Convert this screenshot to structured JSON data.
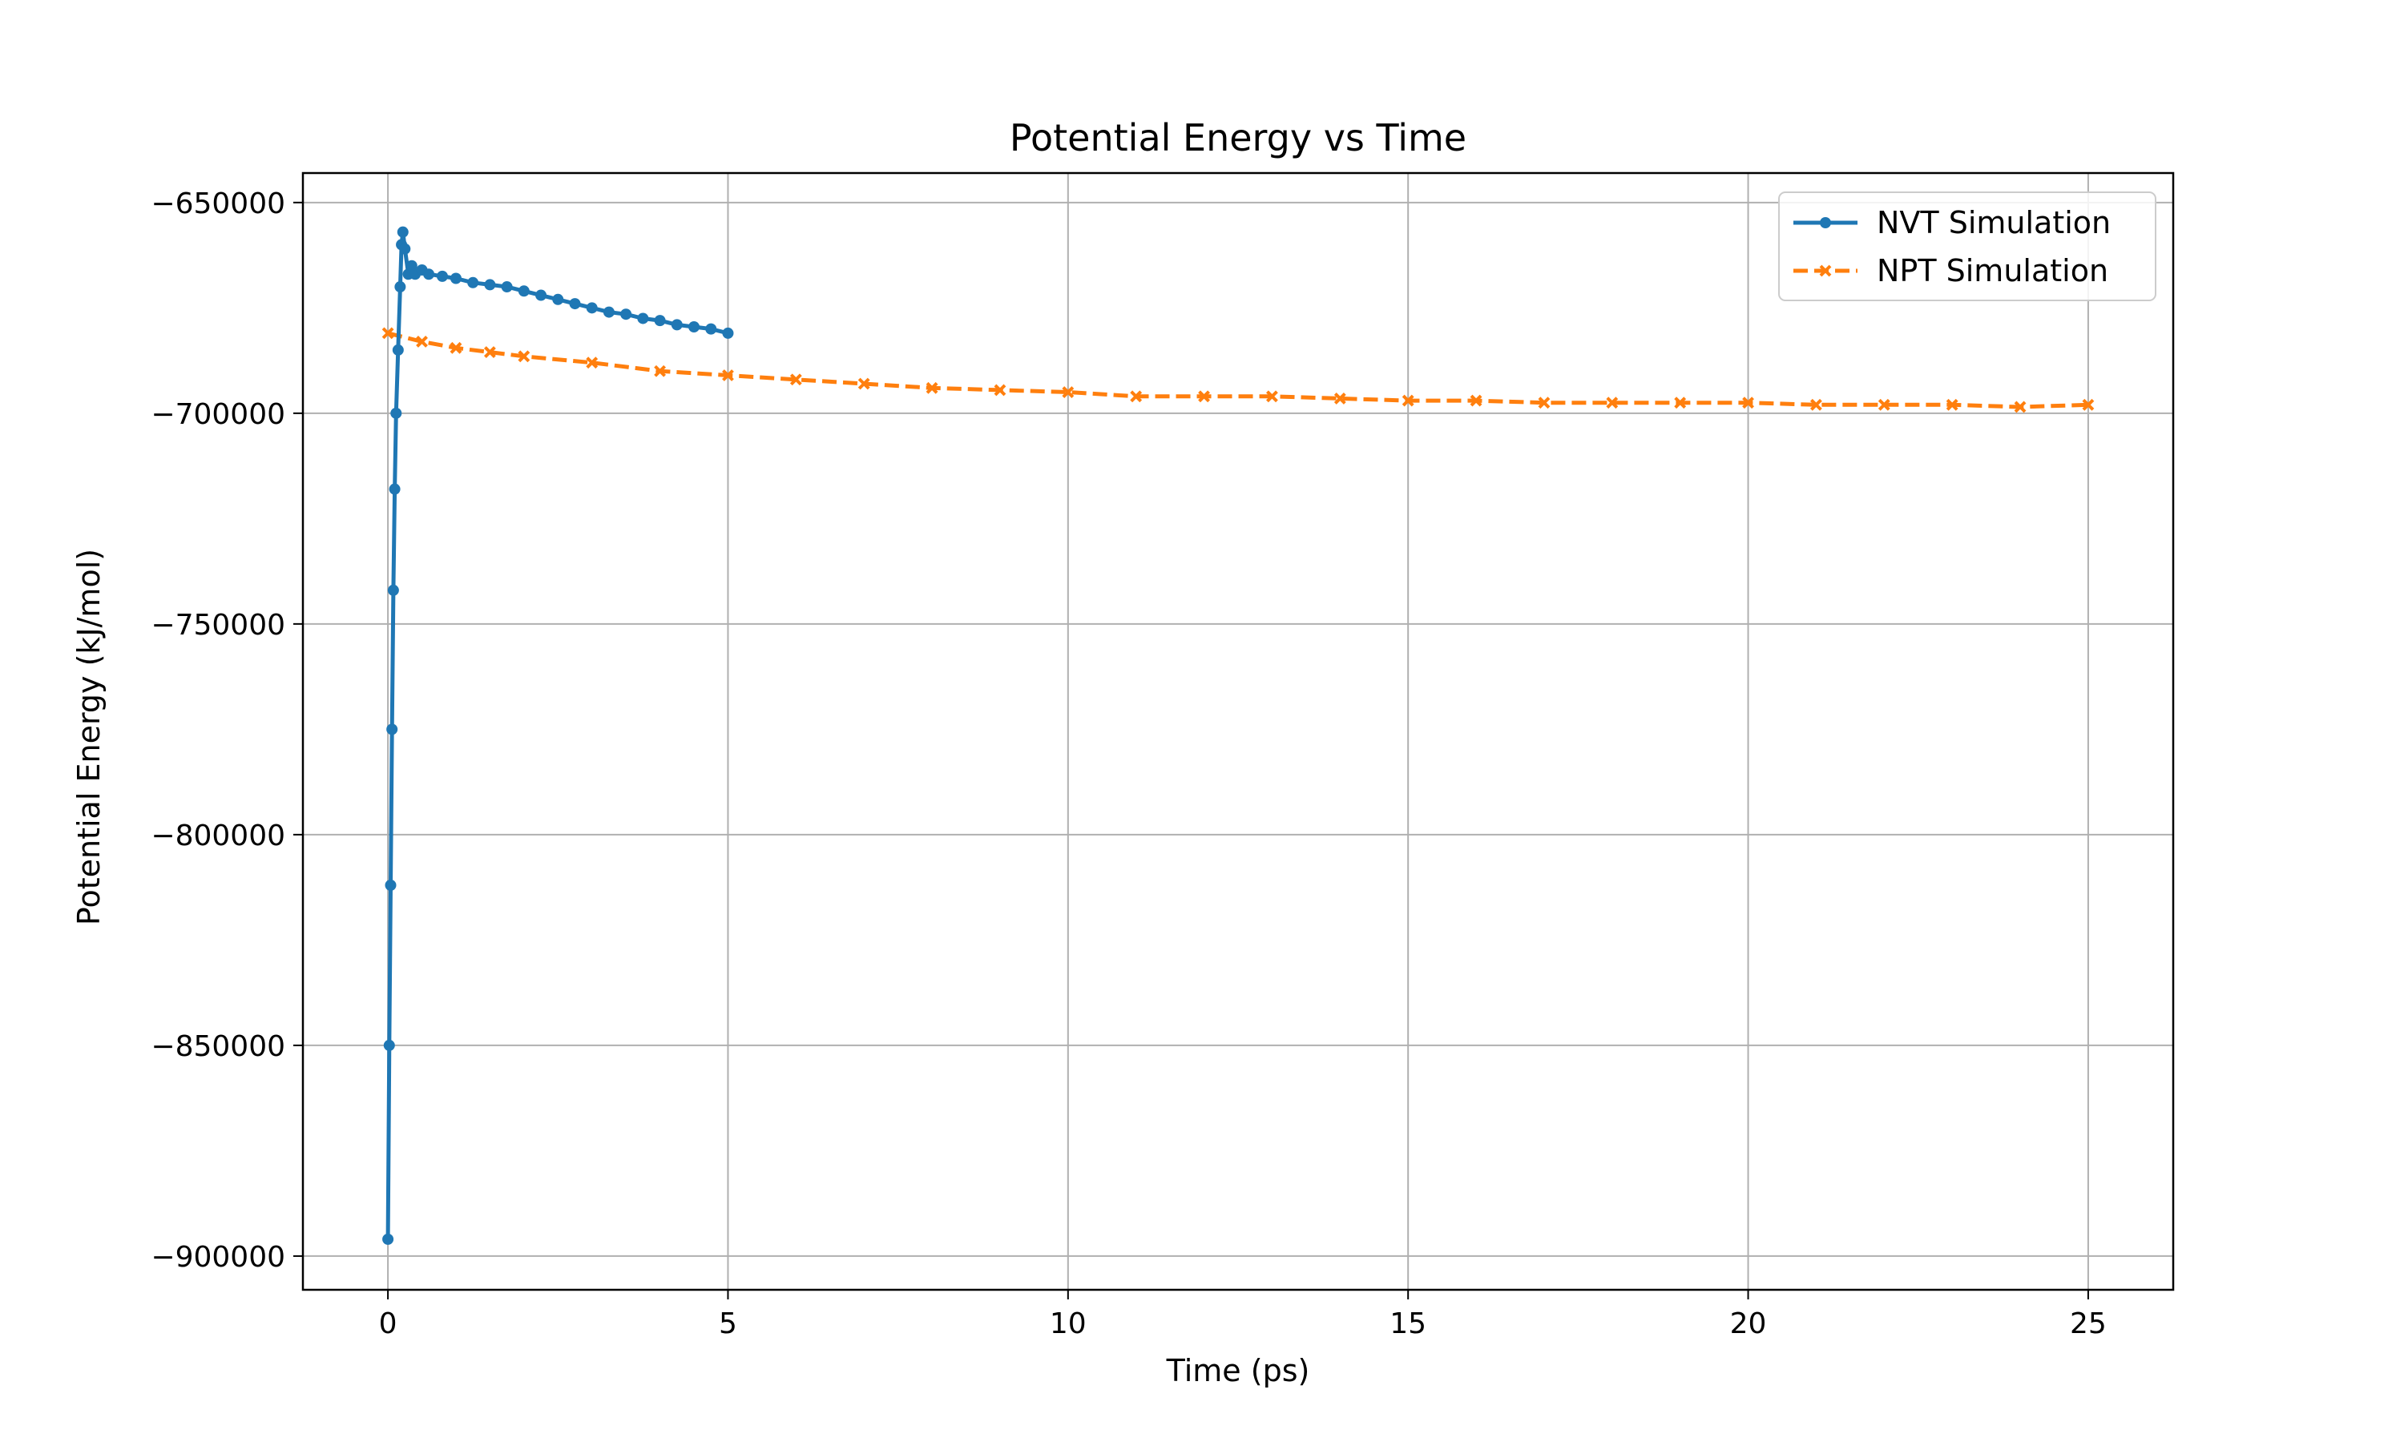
{
  "chart_data": {
    "type": "line",
    "title": "Potential Energy vs Time",
    "xlabel": "Time (ps)",
    "ylabel": "Potential Energy (kJ/mol)",
    "xlim": [
      -1.25,
      26.25
    ],
    "ylim": [
      -908000,
      -643000
    ],
    "xticks": [
      0,
      5,
      10,
      15,
      20,
      25
    ],
    "xtick_labels": [
      "0",
      "5",
      "10",
      "15",
      "20",
      "25"
    ],
    "yticks": [
      -650000,
      -700000,
      -750000,
      -800000,
      -850000,
      -900000
    ],
    "ytick_labels": [
      "−650000",
      "−700000",
      "−750000",
      "−800000",
      "−850000",
      "−900000"
    ],
    "grid": true,
    "legend_position": "top-right",
    "series": [
      {
        "name": "NVT Simulation",
        "color": "#1f77b4",
        "linestyle": "solid",
        "marker": "circle",
        "x": [
          0,
          0.02,
          0.04,
          0.06,
          0.08,
          0.1,
          0.12,
          0.15,
          0.18,
          0.2,
          0.22,
          0.25,
          0.3,
          0.35,
          0.4,
          0.5,
          0.6,
          0.8,
          1.0,
          1.25,
          1.5,
          1.75,
          2.0,
          2.25,
          2.5,
          2.75,
          3.0,
          3.25,
          3.5,
          3.75,
          4.0,
          4.25,
          4.5,
          4.75,
          5.0
        ],
        "y": [
          -896000,
          -850000,
          -812000,
          -775000,
          -742000,
          -718000,
          -700000,
          -685000,
          -670000,
          -660000,
          -657000,
          -661000,
          -667000,
          -665000,
          -667000,
          -666000,
          -667000,
          -667500,
          -668000,
          -669000,
          -669500,
          -670000,
          -671000,
          -672000,
          -673000,
          -674000,
          -675000,
          -676000,
          -676500,
          -677500,
          -678000,
          -679000,
          -679500,
          -680000,
          -681000
        ]
      },
      {
        "name": "NPT Simulation",
        "color": "#ff7f0e",
        "linestyle": "dashed",
        "marker": "x",
        "x": [
          0,
          0.5,
          1,
          1.5,
          2,
          3,
          4,
          5,
          6,
          7,
          8,
          9,
          10,
          11,
          12,
          13,
          14,
          15,
          16,
          17,
          18,
          19,
          20,
          21,
          22,
          23,
          24,
          25
        ],
        "y": [
          -681000,
          -683000,
          -684500,
          -685500,
          -686500,
          -688000,
          -690000,
          -691000,
          -692000,
          -693000,
          -694000,
          -694500,
          -695000,
          -696000,
          -696000,
          -696000,
          -696500,
          -697000,
          -697000,
          -697500,
          -697500,
          -697500,
          -697500,
          -698000,
          -698000,
          -698000,
          -698500,
          -698000
        ]
      }
    ]
  }
}
